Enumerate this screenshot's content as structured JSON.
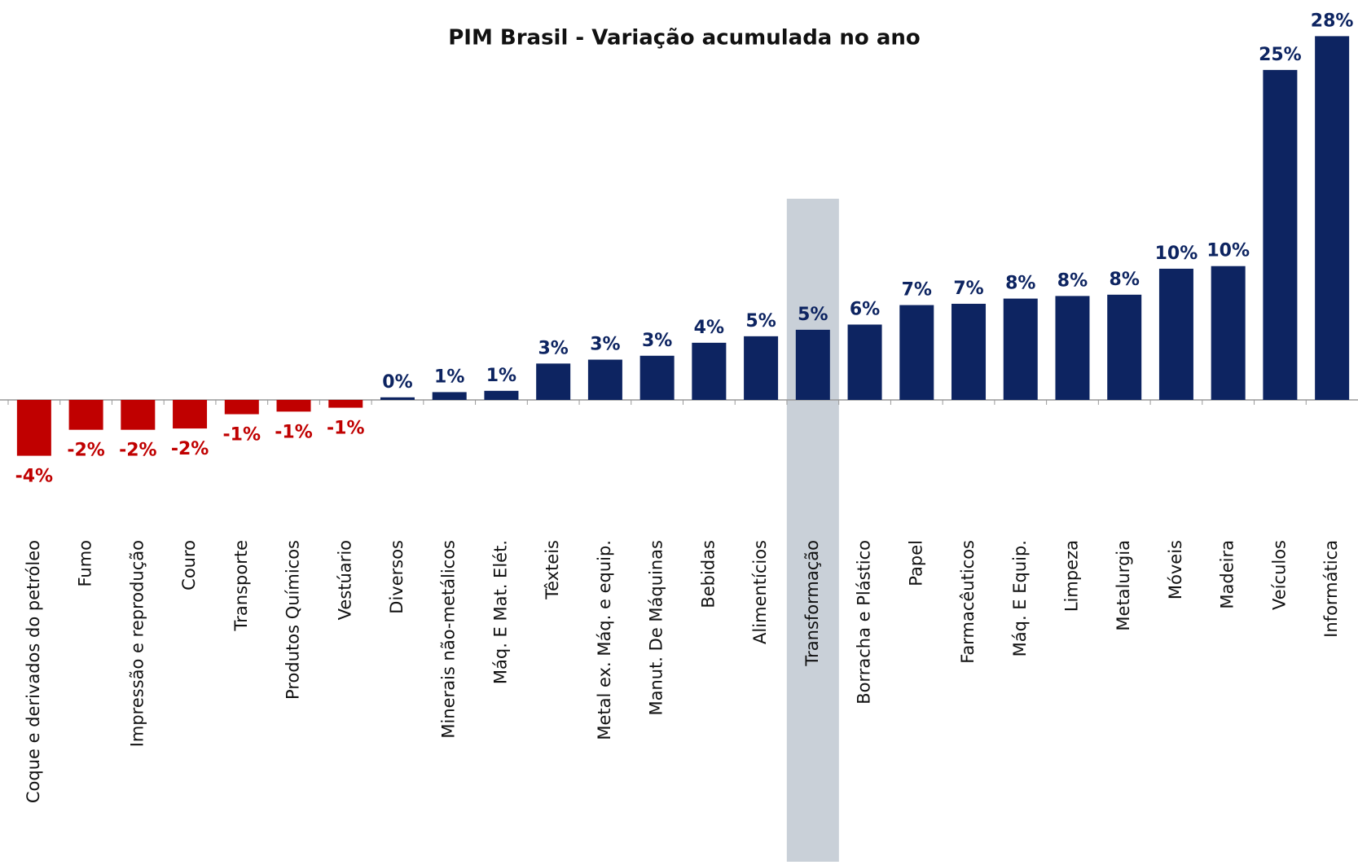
{
  "chart_data": {
    "type": "bar",
    "title": "PIM Brasil - Variação acumulada no ano",
    "categories": [
      "Coque e derivados do petróleo",
      "Fumo",
      "Impressão e reprodução",
      "Couro",
      "Transporte",
      "Produtos Químicos",
      "Vestúario",
      "Diversos",
      "Minerais não-metálicos",
      "Máq. E Mat. Elét.",
      "Têxteis",
      "Metal ex. Máq. e equip.",
      "Manut. De Máquinas",
      "Bebidas",
      "Alimentícios",
      "Transformação",
      "Borracha e Plástico",
      "Papel",
      "Farmacêuticos",
      "Máq. E Equip.",
      "Limpeza",
      "Metalurgia",
      "Móveis",
      "Madeira",
      "Veículos",
      "Informática"
    ],
    "values": [
      -4.3,
      -2.3,
      -2.3,
      -2.2,
      -1.1,
      -0.9,
      -0.6,
      0.2,
      0.6,
      0.7,
      2.8,
      3.1,
      3.4,
      4.4,
      4.9,
      5.4,
      5.8,
      7.3,
      7.4,
      7.8,
      8.0,
      8.1,
      10.1,
      10.3,
      25.4,
      28.0
    ],
    "value_labels": [
      "-4%",
      "-2%",
      "-2%",
      "-2%",
      "-1%",
      "-1%",
      "-1%",
      "0%",
      "1%",
      "1%",
      "3%",
      "3%",
      "3%",
      "4%",
      "5%",
      "5%",
      "6%",
      "7%",
      "7%",
      "8%",
      "8%",
      "8%",
      "10%",
      "10%",
      "25%",
      "28%"
    ],
    "color": "#0d2461",
    "negative_color": "#c00000",
    "highlight_index": 15,
    "highlight_color": "#c9d0d8"
  }
}
